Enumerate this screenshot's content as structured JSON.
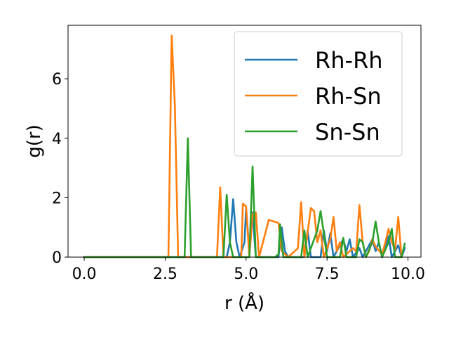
{
  "chart_data": {
    "type": "line",
    "title": "",
    "xlabel": "r (Å)",
    "ylabel": "g(r)",
    "xlim": [
      -0.5,
      10.4
    ],
    "ylim": [
      0,
      7.8
    ],
    "grid": false,
    "legend_position": "upper-right",
    "x_ticks": [
      {
        "value": 0.0,
        "label": "0.0"
      },
      {
        "value": 2.5,
        "label": "2.5"
      },
      {
        "value": 5.0,
        "label": "5.0"
      },
      {
        "value": 7.5,
        "label": "7.5"
      },
      {
        "value": 10.0,
        "label": "10.0"
      }
    ],
    "y_ticks": [
      {
        "value": 0,
        "label": "0"
      },
      {
        "value": 2,
        "label": "2"
      },
      {
        "value": 4,
        "label": "4"
      },
      {
        "value": 6,
        "label": "6"
      }
    ],
    "series": [
      {
        "name": "Rh-Rh",
        "color": "#1f77b4",
        "points": [
          [
            0.0,
            0
          ],
          [
            4.4,
            0
          ],
          [
            4.5,
            0.5
          ],
          [
            4.6,
            1.95
          ],
          [
            4.7,
            0.5
          ],
          [
            4.8,
            0
          ],
          [
            4.95,
            0.5
          ],
          [
            5.0,
            1.65
          ],
          [
            5.1,
            0.2
          ],
          [
            5.2,
            1.5
          ],
          [
            5.3,
            0
          ],
          [
            6.0,
            0
          ],
          [
            6.1,
            1.0
          ],
          [
            6.2,
            0.2
          ],
          [
            6.3,
            0
          ],
          [
            6.8,
            0
          ],
          [
            6.9,
            0.9
          ],
          [
            7.0,
            0
          ],
          [
            7.3,
            0
          ],
          [
            7.4,
            0.9
          ],
          [
            7.5,
            0.2
          ],
          [
            7.6,
            0.8
          ],
          [
            7.7,
            0
          ],
          [
            8.0,
            0.6
          ],
          [
            8.1,
            0.2
          ],
          [
            8.2,
            0.6
          ],
          [
            8.3,
            0
          ],
          [
            8.5,
            0.3
          ],
          [
            8.6,
            0
          ],
          [
            8.9,
            0.6
          ],
          [
            9.0,
            0.2
          ],
          [
            9.1,
            0.5
          ],
          [
            9.2,
            0
          ],
          [
            9.4,
            0.7
          ],
          [
            9.5,
            0
          ],
          [
            9.7,
            0.4
          ],
          [
            9.8,
            0
          ],
          [
            9.9,
            0.3
          ]
        ]
      },
      {
        "name": "Rh-Sn",
        "color": "#ff7f0e",
        "points": [
          [
            0.0,
            0
          ],
          [
            2.6,
            0
          ],
          [
            2.7,
            7.45
          ],
          [
            2.8,
            5.1
          ],
          [
            2.9,
            0
          ],
          [
            4.1,
            0
          ],
          [
            4.2,
            2.35
          ],
          [
            4.3,
            0
          ],
          [
            4.85,
            0
          ],
          [
            4.9,
            1.8
          ],
          [
            5.0,
            1.7
          ],
          [
            5.1,
            0
          ],
          [
            5.2,
            1.45
          ],
          [
            5.3,
            1.5
          ],
          [
            5.4,
            0
          ],
          [
            5.7,
            1.25
          ],
          [
            6.0,
            1.15
          ],
          [
            6.1,
            0.2
          ],
          [
            6.3,
            0
          ],
          [
            6.6,
            0.3
          ],
          [
            6.7,
            1.85
          ],
          [
            6.8,
            0
          ],
          [
            7.0,
            1.65
          ],
          [
            7.1,
            1.55
          ],
          [
            7.2,
            0.5
          ],
          [
            7.3,
            0.9
          ],
          [
            7.4,
            0
          ],
          [
            7.6,
            0.6
          ],
          [
            7.7,
            1.35
          ],
          [
            7.8,
            0.2
          ],
          [
            7.9,
            0.5
          ],
          [
            8.0,
            0
          ],
          [
            8.3,
            0.3
          ],
          [
            8.4,
            0.2
          ],
          [
            8.5,
            1.75
          ],
          [
            8.6,
            0.5
          ],
          [
            8.7,
            0
          ],
          [
            8.8,
            0.2
          ],
          [
            8.9,
            0.6
          ],
          [
            9.0,
            0.35
          ],
          [
            9.2,
            0.1
          ],
          [
            9.3,
            0.5
          ],
          [
            9.4,
            0.95
          ],
          [
            9.5,
            0.5
          ],
          [
            9.6,
            0.25
          ],
          [
            9.7,
            1.35
          ],
          [
            9.8,
            0
          ]
        ]
      },
      {
        "name": "Sn-Sn",
        "color": "#2ca02c",
        "points": [
          [
            0.0,
            0
          ],
          [
            3.1,
            0
          ],
          [
            3.2,
            4.0
          ],
          [
            3.3,
            0
          ],
          [
            4.3,
            0
          ],
          [
            4.4,
            2.1
          ],
          [
            4.5,
            0.5
          ],
          [
            4.6,
            0
          ],
          [
            5.1,
            0
          ],
          [
            5.2,
            3.05
          ],
          [
            5.3,
            0
          ],
          [
            5.9,
            0
          ],
          [
            6.0,
            0.1
          ],
          [
            6.05,
            1.1
          ],
          [
            6.15,
            0
          ],
          [
            6.7,
            0
          ],
          [
            6.8,
            0.9
          ],
          [
            6.9,
            0
          ],
          [
            7.2,
            0.9
          ],
          [
            7.3,
            1.55
          ],
          [
            7.4,
            0.8
          ],
          [
            7.5,
            0
          ],
          [
            7.9,
            0
          ],
          [
            8.0,
            0.65
          ],
          [
            8.1,
            0
          ],
          [
            8.4,
            0
          ],
          [
            8.5,
            0.6
          ],
          [
            8.6,
            0.5
          ],
          [
            8.7,
            0
          ],
          [
            8.9,
            0.5
          ],
          [
            9.0,
            1.2
          ],
          [
            9.1,
            0.5
          ],
          [
            9.2,
            0
          ],
          [
            9.4,
            0.5
          ],
          [
            9.5,
            0.95
          ],
          [
            9.6,
            0
          ],
          [
            9.8,
            0
          ],
          [
            9.9,
            0.45
          ]
        ]
      }
    ]
  }
}
